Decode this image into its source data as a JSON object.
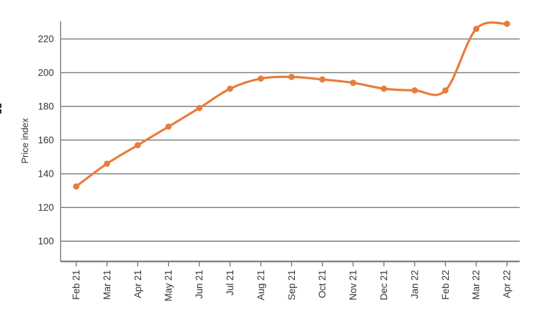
{
  "chart_data": {
    "type": "line",
    "title": "",
    "x": [
      "Feb 21",
      "Mar 21",
      "Apr 21",
      "May 21",
      "Jun 21",
      "Jul 21",
      "Aug 21",
      "Sep 21",
      "Oct 21",
      "Nov 21",
      "Dec 21",
      "Jan 22",
      "Feb 22",
      "Mar 22",
      "Apr 22"
    ],
    "series": [
      {
        "name": "Price index",
        "values": [
          132.5,
          146,
          157,
          168,
          179,
          190.5,
          196.5,
          197.5,
          196,
          194,
          190.5,
          189.5,
          189.5,
          226,
          229
        ]
      }
    ],
    "xlabel": "",
    "ylabel": "Price index",
    "ylim": [
      88,
      230.5
    ],
    "yticks": [
      100,
      120,
      140,
      160,
      180,
      200,
      220
    ],
    "grid": "horizontal",
    "legend": "none",
    "smooth": true,
    "marker": "circle",
    "line_color": "#e67d3c",
    "axis_color": "#787878",
    "text_color": "#333333"
  }
}
